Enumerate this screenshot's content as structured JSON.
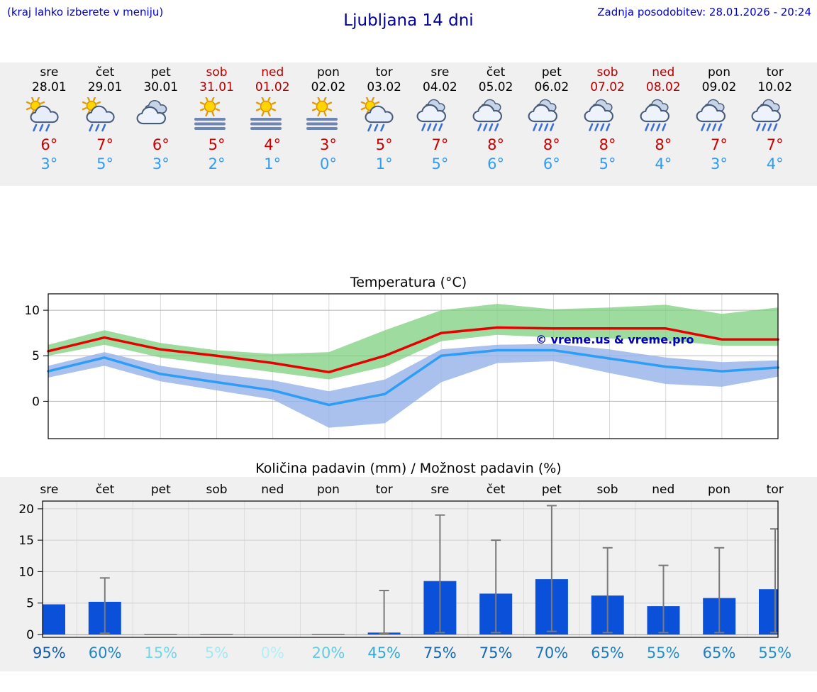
{
  "header": {
    "left_note": "(kraj lahko izberete v meniju)",
    "title": "Ljubljana 14 dni",
    "last_update": "Zadnja posodobitev: 28.01.2026 - 20:24"
  },
  "colors": {
    "accent_blue": "#0000cc",
    "title_blue": "#000099",
    "weekend_red": "#b50000",
    "tmax_red": "#cc0000",
    "tmin_blue": "#2e9df5",
    "strip_bg": "#f0f0f0",
    "temp_line_red": "#e60000",
    "temp_line_blue": "#2e9df5",
    "band_green": "#7ecf7e",
    "band_blue": "#95b1e8",
    "bar_blue": "#0a50d8",
    "whisker_gray": "#7a7a7a",
    "watermark_blue": "#0000bb"
  },
  "forecast_days": [
    {
      "day": "sre",
      "date": "28.01",
      "weekend": false,
      "icon": "sun-rain",
      "tmax": "6°",
      "tmin": "3°"
    },
    {
      "day": "čet",
      "date": "29.01",
      "weekend": false,
      "icon": "sun-rain",
      "tmax": "7°",
      "tmin": "5°"
    },
    {
      "day": "pet",
      "date": "30.01",
      "weekend": false,
      "icon": "cloudy",
      "tmax": "6°",
      "tmin": "3°"
    },
    {
      "day": "sob",
      "date": "31.01",
      "weekend": true,
      "icon": "sun-fog",
      "tmax": "5°",
      "tmin": "2°"
    },
    {
      "day": "ned",
      "date": "01.02",
      "weekend": true,
      "icon": "sun-fog",
      "tmax": "4°",
      "tmin": "1°"
    },
    {
      "day": "pon",
      "date": "02.02",
      "weekend": false,
      "icon": "sun-fog",
      "tmax": "3°",
      "tmin": "0°"
    },
    {
      "day": "tor",
      "date": "03.02",
      "weekend": false,
      "icon": "sun-rain",
      "tmax": "5°",
      "tmin": "1°"
    },
    {
      "day": "sre",
      "date": "04.02",
      "weekend": false,
      "icon": "rain",
      "tmax": "7°",
      "tmin": "5°"
    },
    {
      "day": "čet",
      "date": "05.02",
      "weekend": false,
      "icon": "rain",
      "tmax": "8°",
      "tmin": "6°"
    },
    {
      "day": "pet",
      "date": "06.02",
      "weekend": false,
      "icon": "rain",
      "tmax": "8°",
      "tmin": "6°"
    },
    {
      "day": "sob",
      "date": "07.02",
      "weekend": true,
      "icon": "rain",
      "tmax": "8°",
      "tmin": "5°"
    },
    {
      "day": "ned",
      "date": "08.02",
      "weekend": true,
      "icon": "rain",
      "tmax": "8°",
      "tmin": "4°"
    },
    {
      "day": "pon",
      "date": "09.02",
      "weekend": false,
      "icon": "rain",
      "tmax": "7°",
      "tmin": "3°"
    },
    {
      "day": "tor",
      "date": "10.02",
      "weekend": false,
      "icon": "rain",
      "tmax": "7°",
      "tmin": "4°"
    }
  ],
  "chart_data": [
    {
      "type": "line",
      "title": "Temperatura (°C)",
      "categories": [
        "sre",
        "čet",
        "pet",
        "sob",
        "ned",
        "pon",
        "tor",
        "sre",
        "čet",
        "pet",
        "sob",
        "ned",
        "pon",
        "tor"
      ],
      "series": [
        {
          "name": "max_temp",
          "values": [
            5.5,
            7.0,
            5.7,
            5.0,
            4.2,
            3.2,
            5.0,
            7.5,
            8.1,
            8.0,
            8.0,
            8.0,
            6.8,
            6.8
          ]
        },
        {
          "name": "min_temp",
          "values": [
            3.3,
            4.8,
            3.0,
            2.1,
            1.2,
            -0.4,
            0.8,
            5.0,
            5.6,
            5.6,
            4.7,
            3.8,
            3.3,
            3.7
          ]
        },
        {
          "name": "max_range_upper",
          "values": [
            6.2,
            7.8,
            6.4,
            5.6,
            5.2,
            5.4,
            7.8,
            10.0,
            10.7,
            10.1,
            10.3,
            10.6,
            9.6,
            10.3
          ]
        },
        {
          "name": "max_range_lower",
          "values": [
            5.0,
            6.2,
            4.8,
            4.0,
            3.2,
            2.4,
            3.8,
            6.6,
            7.3,
            7.0,
            6.9,
            6.7,
            6.1,
            6.1
          ]
        },
        {
          "name": "min_range_upper",
          "values": [
            3.9,
            5.4,
            3.9,
            3.0,
            2.3,
            1.1,
            2.4,
            5.7,
            6.2,
            6.3,
            5.7,
            4.8,
            4.3,
            4.5
          ]
        },
        {
          "name": "min_range_lower",
          "values": [
            2.6,
            3.9,
            2.2,
            1.2,
            0.2,
            -2.9,
            -2.4,
            2.1,
            4.2,
            4.4,
            3.1,
            1.9,
            1.6,
            2.7
          ]
        }
      ],
      "ylim": [
        -4.1,
        11.8
      ],
      "yticks": [
        0,
        5,
        10
      ],
      "grid": true,
      "watermark": "© vreme.us & vreme.pro"
    },
    {
      "type": "bar",
      "title": "Količina padavin (mm) / Možnost padavin (%)",
      "categories": [
        "sre",
        "čet",
        "pet",
        "sob",
        "ned",
        "pon",
        "tor",
        "sre",
        "čet",
        "pet",
        "sob",
        "ned",
        "pon",
        "tor"
      ],
      "values": [
        4.8,
        5.2,
        0.1,
        0.1,
        0,
        0.1,
        0.3,
        8.5,
        6.5,
        8.8,
        6.2,
        4.5,
        5.8,
        7.2
      ],
      "whisker_low": [
        null,
        0.2,
        null,
        null,
        null,
        null,
        0.2,
        0.3,
        0.3,
        0.5,
        0.3,
        0.3,
        0.3,
        0.3
      ],
      "whisker_high": [
        null,
        9.0,
        null,
        null,
        null,
        null,
        7.0,
        19.0,
        15.0,
        20.5,
        13.8,
        11.0,
        13.8,
        16.8
      ],
      "probabilities": [
        "95%",
        "60%",
        "15%",
        "5%",
        "0%",
        "20%",
        "45%",
        "75%",
        "75%",
        "70%",
        "65%",
        "55%",
        "65%",
        "55%"
      ],
      "prob_colors": [
        "#1259aa",
        "#1f86c4",
        "#74d4e8",
        "#a2e8f2",
        "#b4eef6",
        "#62cce4",
        "#34aad6",
        "#1668b4",
        "#1668b4",
        "#1a74ba",
        "#1c7ec0",
        "#2290c9",
        "#1c7ec0",
        "#2290c9"
      ],
      "ylim": [
        0,
        21
      ],
      "yticks": [
        0,
        5,
        10,
        15,
        20
      ],
      "grid": true
    }
  ]
}
